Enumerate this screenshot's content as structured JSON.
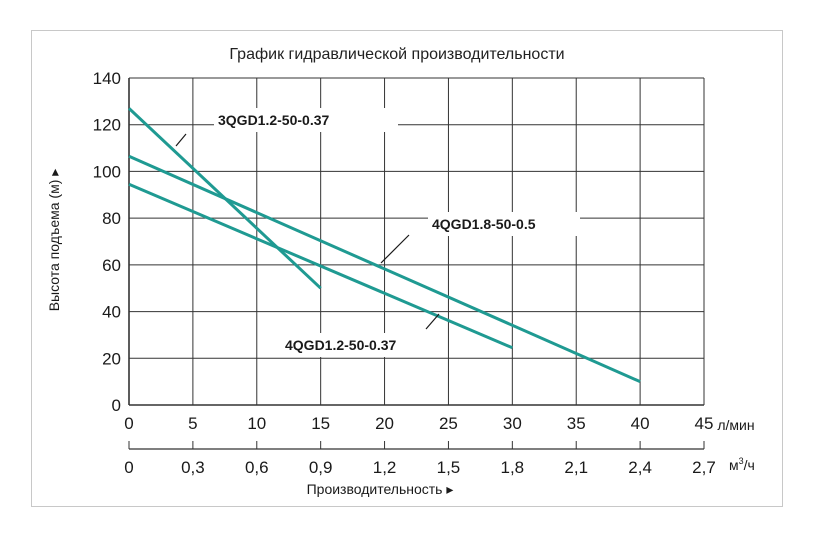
{
  "chart_data": {
    "type": "line",
    "title": "График гидравлической производительности",
    "ylabel": "Высота подъема (м) ▸",
    "xlabel": "Производительность ▸",
    "x_unit": "л/мин",
    "x2_unit_base": "м",
    "x2_unit_sup": "3",
    "x2_unit_tail": "/ч",
    "xlim": [
      0,
      45
    ],
    "ylim": [
      0,
      140
    ],
    "x_ticks": [
      "0",
      "5",
      "10",
      "15",
      "20",
      "25",
      "30",
      "35",
      "40",
      "45"
    ],
    "x2_ticks": [
      "0",
      "0,3",
      "0,6",
      "0,9",
      "1,2",
      "1,5",
      "1,8",
      "2,1",
      "2,4",
      "2,7"
    ],
    "y_ticks": [
      "0",
      "20",
      "40",
      "60",
      "80",
      "100",
      "120",
      "140"
    ],
    "grid": true,
    "colors": {
      "series": "#1f9a92",
      "grid": "#333333"
    },
    "series": [
      {
        "name": "3QGD1.2-50-0.37",
        "x": [
          0,
          15
        ],
        "y": [
          127,
          50
        ]
      },
      {
        "name": "4QGD1.8-50-0.5",
        "x": [
          0,
          40
        ],
        "y": [
          106.5,
          10
        ]
      },
      {
        "name": "4QGD1.2-50-0.37",
        "x": [
          0,
          30
        ],
        "y": [
          94.5,
          24.5
        ]
      }
    ]
  }
}
